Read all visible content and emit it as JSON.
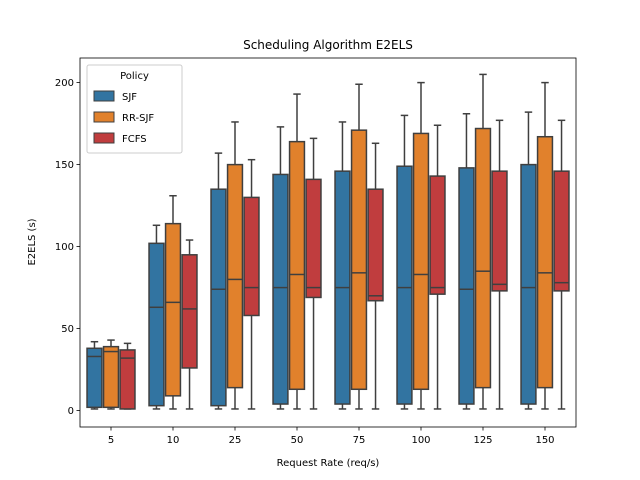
{
  "chart_data": {
    "type": "box",
    "title": "Scheduling Algorithm E2ELS",
    "xlabel": "Request Rate (req/s)",
    "ylabel": "E2ELS (s)",
    "ylim": [
      -10,
      215
    ],
    "yticks": [
      0,
      50,
      100,
      150,
      200
    ],
    "categories": [
      "5",
      "10",
      "25",
      "50",
      "75",
      "100",
      "125",
      "150"
    ],
    "legend": {
      "title": "Policy",
      "placement": "upper-left"
    },
    "grid": false,
    "series": [
      {
        "name": "SJF",
        "color": "#3274a1",
        "boxes": [
          {
            "min": 1,
            "q1": 2,
            "median": 33,
            "q3": 38,
            "max": 42
          },
          {
            "min": 1,
            "q1": 3,
            "median": 63,
            "q3": 102,
            "max": 113
          },
          {
            "min": 1,
            "q1": 3,
            "median": 74,
            "q3": 135,
            "max": 157
          },
          {
            "min": 1,
            "q1": 4,
            "median": 75,
            "q3": 144,
            "max": 173
          },
          {
            "min": 1,
            "q1": 4,
            "median": 75,
            "q3": 146,
            "max": 176
          },
          {
            "min": 1,
            "q1": 4,
            "median": 75,
            "q3": 149,
            "max": 180
          },
          {
            "min": 1,
            "q1": 4,
            "median": 74,
            "q3": 148,
            "max": 181
          },
          {
            "min": 1,
            "q1": 4,
            "median": 75,
            "q3": 150,
            "max": 182
          }
        ]
      },
      {
        "name": "RR-SJF",
        "color": "#e1812c",
        "boxes": [
          {
            "min": 1,
            "q1": 2,
            "median": 36,
            "q3": 39,
            "max": 43
          },
          {
            "min": 1,
            "q1": 9,
            "median": 66,
            "q3": 114,
            "max": 131
          },
          {
            "min": 1,
            "q1": 14,
            "median": 80,
            "q3": 150,
            "max": 176
          },
          {
            "min": 1,
            "q1": 13,
            "median": 83,
            "q3": 164,
            "max": 193
          },
          {
            "min": 1,
            "q1": 13,
            "median": 84,
            "q3": 171,
            "max": 199
          },
          {
            "min": 1,
            "q1": 13,
            "median": 83,
            "q3": 169,
            "max": 200
          },
          {
            "min": 1,
            "q1": 14,
            "median": 85,
            "q3": 172,
            "max": 205
          },
          {
            "min": 1,
            "q1": 14,
            "median": 84,
            "q3": 167,
            "max": 200
          }
        ]
      },
      {
        "name": "FCFS",
        "color": "#c03d3e",
        "boxes": [
          {
            "min": 1,
            "q1": 1,
            "median": 32,
            "q3": 37,
            "max": 41
          },
          {
            "min": 1,
            "q1": 26,
            "median": 62,
            "q3": 95,
            "max": 104
          },
          {
            "min": 1,
            "q1": 58,
            "median": 75,
            "q3": 130,
            "max": 153
          },
          {
            "min": 1,
            "q1": 69,
            "median": 75,
            "q3": 141,
            "max": 166
          },
          {
            "min": 1,
            "q1": 67,
            "median": 70,
            "q3": 135,
            "max": 163
          },
          {
            "min": 1,
            "q1": 71,
            "median": 75,
            "q3": 143,
            "max": 174
          },
          {
            "min": 1,
            "q1": 73,
            "median": 77,
            "q3": 146,
            "max": 177
          },
          {
            "min": 1,
            "q1": 73,
            "median": 78,
            "q3": 146,
            "max": 177
          }
        ]
      }
    ]
  }
}
